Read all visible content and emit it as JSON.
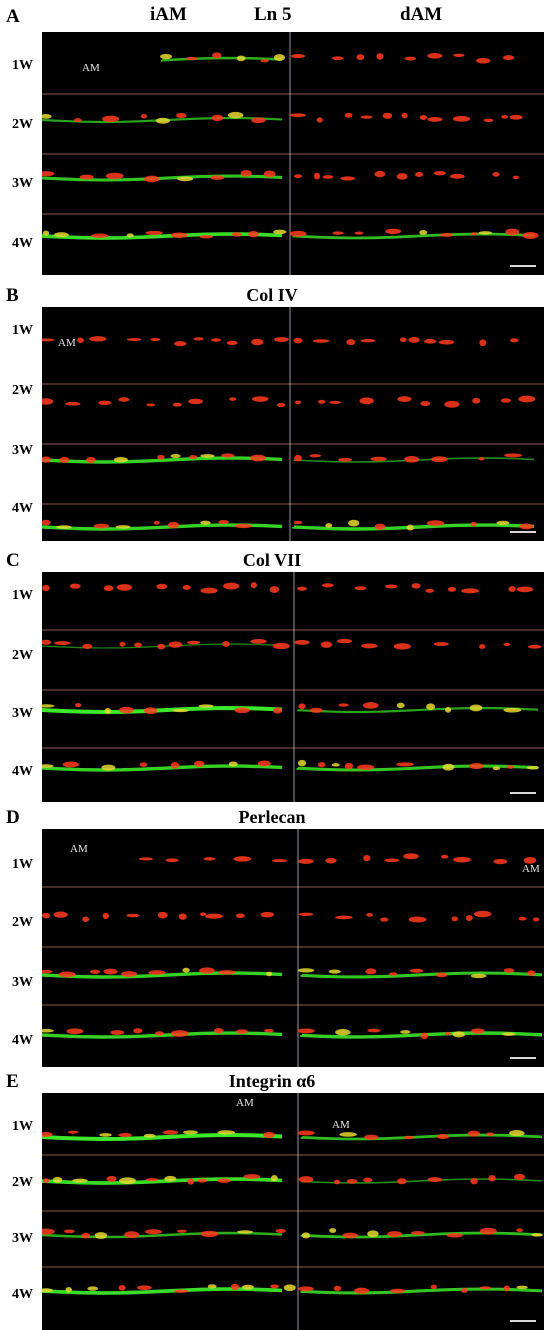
{
  "column_headers": {
    "left": "iAM",
    "center": "Ln 5",
    "right": "dAM"
  },
  "row_labels": [
    "1W",
    "2W",
    "3W",
    "4W"
  ],
  "am_label": "AM",
  "scale_bar_color": "#d8d8d8",
  "colors": {
    "background": "#000000",
    "red_signal": "#ff3a1e",
    "green_signal": "#3de82a",
    "yellow_overlap": "#e6d830",
    "row_separator": "#b07060"
  },
  "panels": [
    {
      "letter": "A",
      "title": ""
    },
    {
      "letter": "B",
      "title": "Col IV"
    },
    {
      "letter": "C",
      "title": "Col VII"
    },
    {
      "letter": "D",
      "title": "Perlecan"
    },
    {
      "letter": "E",
      "title": "Integrin α6"
    }
  ]
}
